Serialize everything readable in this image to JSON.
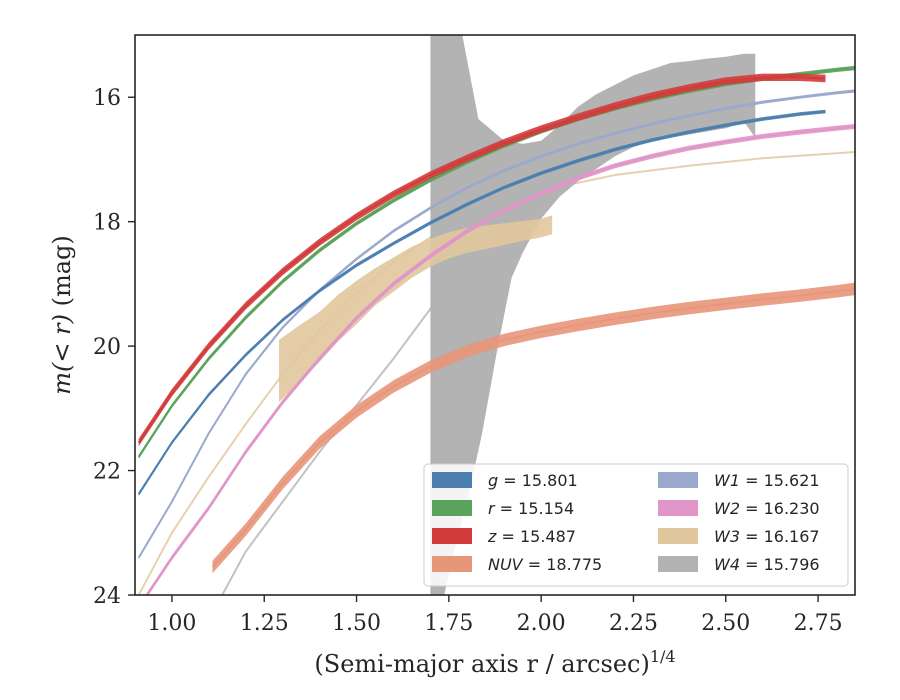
{
  "chart_data": {
    "type": "line",
    "xlabel": "(Semi-major axis r / arcsec)",
    "xlabel_superscript": "1/4",
    "ylabel_prefix": "m(< r)",
    "ylabel_suffix": " (mag)",
    "xlim": [
      0.9,
      2.85
    ],
    "ylim": [
      24,
      15
    ],
    "y_inverted": true,
    "grid": false,
    "legend_placement": "lower-right",
    "x_ticks": [
      1.0,
      1.25,
      1.5,
      1.75,
      2.0,
      2.25,
      2.5,
      2.75
    ],
    "x_tick_labels": [
      "1.00",
      "1.25",
      "1.50",
      "1.75",
      "2.00",
      "2.25",
      "2.50",
      "2.75"
    ],
    "y_ticks": [
      16,
      18,
      20,
      22,
      24
    ],
    "y_tick_labels": [
      "16",
      "18",
      "20",
      "22",
      "24"
    ],
    "series": [
      {
        "name": "g = 15.801",
        "var": "g",
        "value": "15.801",
        "color": "#4c7fb0",
        "kind": "band",
        "x": [
          0.91,
          1.0,
          1.1,
          1.2,
          1.3,
          1.4,
          1.5,
          1.6,
          1.7,
          1.8,
          1.9,
          2.0,
          2.1,
          2.2,
          2.3,
          2.4,
          2.5,
          2.6,
          2.7,
          2.77
        ],
        "y": [
          22.38,
          21.55,
          20.78,
          20.14,
          19.58,
          19.11,
          18.7,
          18.35,
          18.02,
          17.72,
          17.45,
          17.22,
          17.02,
          16.84,
          16.69,
          16.56,
          16.45,
          16.35,
          16.27,
          16.23
        ],
        "width": 0.06
      },
      {
        "name": "r = 15.154",
        "var": "r",
        "value": "15.154",
        "color": "#5aa35a",
        "kind": "band",
        "x": [
          0.91,
          1.0,
          1.1,
          1.2,
          1.3,
          1.4,
          1.5,
          1.6,
          1.7,
          1.8,
          1.9,
          2.0,
          2.1,
          2.2,
          2.3,
          2.4,
          2.5,
          2.6,
          2.7,
          2.8,
          2.85
        ],
        "y": [
          21.78,
          20.96,
          20.2,
          19.54,
          18.96,
          18.46,
          18.03,
          17.66,
          17.33,
          17.04,
          16.78,
          16.55,
          16.35,
          16.18,
          16.03,
          15.9,
          15.79,
          15.7,
          15.63,
          15.56,
          15.53
        ],
        "width": 0.07
      },
      {
        "name": "z = 15.487",
        "var": "z",
        "value": "15.487",
        "color": "#d33b3b",
        "kind": "band",
        "x": [
          0.91,
          1.0,
          1.1,
          1.2,
          1.3,
          1.4,
          1.5,
          1.6,
          1.7,
          1.8,
          1.9,
          2.0,
          2.1,
          2.2,
          2.3,
          2.4,
          2.5,
          2.6,
          2.7,
          2.77
        ],
        "y": [
          21.55,
          20.75,
          20.0,
          19.35,
          18.8,
          18.33,
          17.92,
          17.56,
          17.25,
          16.98,
          16.73,
          16.51,
          16.32,
          16.14,
          15.98,
          15.85,
          15.74,
          15.68,
          15.68,
          15.7
        ],
        "width": 0.12
      },
      {
        "name": "NUV = 18.775",
        "var": "NUV",
        "value": "18.775",
        "color": "#e8967a",
        "kind": "band",
        "x": [
          1.11,
          1.2,
          1.3,
          1.4,
          1.5,
          1.6,
          1.7,
          1.8,
          1.9,
          2.0,
          2.1,
          2.2,
          2.3,
          2.4,
          2.5,
          2.6,
          2.7,
          2.8,
          2.85
        ],
        "y": [
          23.55,
          22.95,
          22.2,
          21.55,
          21.05,
          20.65,
          20.33,
          20.08,
          19.9,
          19.77,
          19.66,
          19.56,
          19.47,
          19.39,
          19.32,
          19.25,
          19.19,
          19.12,
          19.08
        ],
        "width": 0.2
      },
      {
        "name": "W1 = 15.621",
        "var": "W1",
        "value": "15.621",
        "color": "#9aa9cc",
        "kind": "band",
        "x": [
          0.91,
          1.0,
          1.1,
          1.2,
          1.3,
          1.4,
          1.5,
          1.6,
          1.7,
          1.8,
          1.9,
          2.0,
          2.1,
          2.2,
          2.3,
          2.4,
          2.5,
          2.6,
          2.7,
          2.8,
          2.85
        ],
        "y": [
          23.4,
          22.5,
          21.4,
          20.45,
          19.7,
          19.1,
          18.6,
          18.15,
          17.78,
          17.45,
          17.18,
          16.95,
          16.75,
          16.58,
          16.43,
          16.3,
          16.18,
          16.08,
          16.0,
          15.93,
          15.9
        ],
        "width": 0.05
      },
      {
        "name": "W2 = 16.230",
        "var": "W2",
        "value": "16.230",
        "color": "#e096c8",
        "kind": "band",
        "x": [
          0.91,
          1.0,
          1.1,
          1.2,
          1.3,
          1.4,
          1.5,
          1.6,
          1.7,
          1.8,
          1.9,
          2.0,
          2.1,
          2.2,
          2.3,
          2.4,
          2.5,
          2.6,
          2.7,
          2.8,
          2.85
        ],
        "y": [
          24.2,
          23.4,
          22.6,
          21.7,
          20.9,
          20.2,
          19.55,
          19.0,
          18.55,
          18.15,
          17.82,
          17.55,
          17.3,
          17.1,
          16.95,
          16.82,
          16.72,
          16.63,
          16.56,
          16.5,
          16.47
        ],
        "width": 0.08
      },
      {
        "name": "W3 = 16.167",
        "var": "W3",
        "value": "16.167",
        "color": "#e0c69c",
        "kind": "band",
        "x": [
          1.29,
          1.35,
          1.4,
          1.45,
          1.5,
          1.55,
          1.6,
          1.65,
          1.7,
          1.75,
          1.8,
          1.85,
          1.9,
          1.95,
          2.0,
          2.03
        ],
        "y": [
          20.4,
          20.1,
          19.85,
          19.55,
          19.3,
          19.05,
          18.85,
          18.65,
          18.5,
          18.38,
          18.3,
          18.25,
          18.2,
          18.15,
          18.1,
          18.05
        ],
        "width_list": [
          1.0,
          0.9,
          0.8,
          0.75,
          0.7,
          0.6,
          0.55,
          0.5,
          0.45,
          0.42,
          0.4,
          0.38,
          0.35,
          0.32,
          0.3,
          0.3
        ],
        "profile_x": [
          0.91,
          1.0,
          1.1,
          1.2,
          1.3,
          1.4,
          1.5,
          1.6,
          1.7,
          1.8,
          1.9,
          2.0,
          2.2,
          2.4,
          2.6,
          2.85
        ],
        "profile_y": [
          24.0,
          23.0,
          22.1,
          21.25,
          20.45,
          19.75,
          19.15,
          18.65,
          18.25,
          17.95,
          17.7,
          17.5,
          17.25,
          17.1,
          16.98,
          16.88
        ]
      },
      {
        "name": "W4 = 15.796",
        "var": "W4",
        "value": "15.796",
        "color": "#b3b3b3",
        "kind": "polygon",
        "upper_x": [
          1.7,
          1.78,
          1.83,
          1.9,
          1.95,
          2.0,
          2.05,
          2.1,
          2.15,
          2.2,
          2.25,
          2.3,
          2.35,
          2.4,
          2.45,
          2.5,
          2.55,
          2.58
        ],
        "upper_y": [
          14.8,
          14.8,
          16.35,
          16.7,
          16.75,
          16.7,
          16.45,
          16.15,
          15.95,
          15.8,
          15.65,
          15.55,
          15.45,
          15.42,
          15.38,
          15.35,
          15.3,
          15.3
        ],
        "lower_x": [
          2.58,
          2.55,
          2.5,
          2.45,
          2.4,
          2.35,
          2.3,
          2.25,
          2.2,
          2.15,
          2.1,
          2.05,
          2.0,
          1.95,
          1.92,
          1.88,
          1.84,
          1.8,
          1.76,
          1.73,
          1.7
        ],
        "lower_y": [
          16.65,
          16.4,
          16.5,
          16.55,
          16.6,
          16.65,
          16.7,
          16.8,
          16.95,
          17.15,
          17.35,
          17.6,
          17.95,
          18.5,
          18.9,
          20.1,
          21.4,
          22.5,
          23.4,
          24.2,
          24.2
        ],
        "profile_x": [
          1.0,
          1.2,
          1.4,
          1.6,
          1.7,
          1.8
        ],
        "profile_y": [
          25.5,
          23.3,
          21.7,
          20.2,
          19.4,
          18.5
        ]
      }
    ],
    "legend": {
      "columns": 2,
      "entries": [
        {
          "var": "g",
          "value": "15.801",
          "color": "#4c7fb0"
        },
        {
          "var": "r",
          "value": "15.154",
          "color": "#5aa35a"
        },
        {
          "var": "z",
          "value": "15.487",
          "color": "#d33b3b"
        },
        {
          "var": "NUV",
          "value": "18.775",
          "color": "#e8967a"
        },
        {
          "var": "W1",
          "value": "15.621",
          "color": "#9aa9cc"
        },
        {
          "var": "W2",
          "value": "16.230",
          "color": "#e096c8"
        },
        {
          "var": "W3",
          "value": "16.167",
          "color": "#e0c69c"
        },
        {
          "var": "W4",
          "value": "15.796",
          "color": "#b3b3b3"
        }
      ]
    }
  }
}
